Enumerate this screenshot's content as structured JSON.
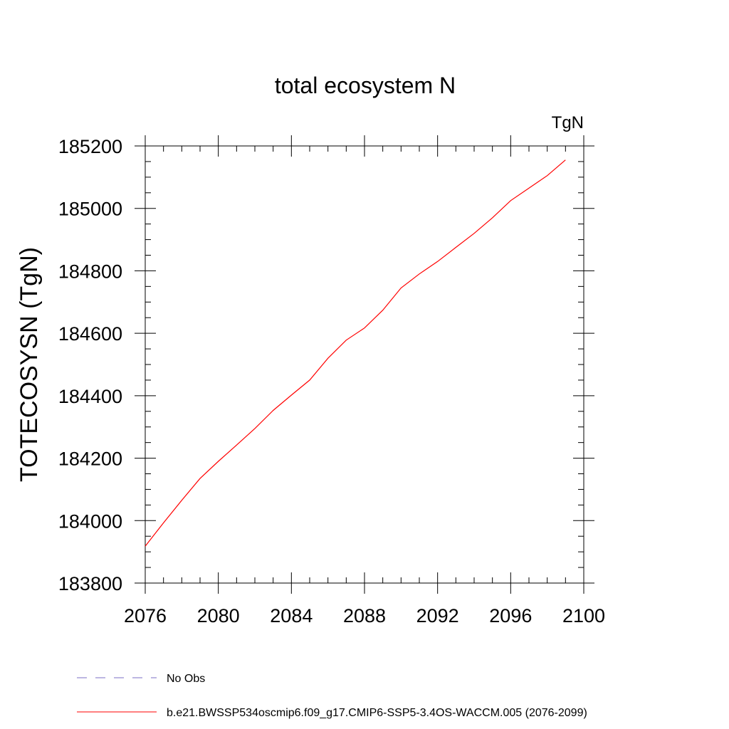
{
  "chart_data": {
    "type": "line",
    "title": "total ecosystem N",
    "units_label": "TgN",
    "ylabel": "TOTECOSYSN  (TgN)",
    "xlabel": "",
    "xlim": [
      2076,
      2100
    ],
    "ylim": [
      183800,
      185200
    ],
    "x_ticks": [
      2076,
      2080,
      2084,
      2088,
      2092,
      2096,
      2100
    ],
    "y_ticks": [
      183800,
      184000,
      184200,
      184400,
      184600,
      184800,
      185000,
      185200
    ],
    "x_minor_step": 1,
    "y_minor_step": 50,
    "grid": false,
    "legend_position": "bottom-left",
    "series": [
      {
        "name": "b.e21.BWSSP534oscmip6.f09_g17.CMIP6-SSP5-3.4OS-WACCM.005 (2076-2099)",
        "color": "#ff0000",
        "dash": "solid",
        "x": [
          2076,
          2077,
          2078,
          2079,
          2080,
          2081,
          2082,
          2083,
          2084,
          2085,
          2086,
          2087,
          2088,
          2089,
          2090,
          2091,
          2092,
          2093,
          2094,
          2095,
          2096,
          2097,
          2098,
          2099
        ],
        "y": [
          183918,
          183993,
          184065,
          184135,
          184190,
          184242,
          184295,
          184353,
          184402,
          184450,
          184520,
          184578,
          184617,
          184674,
          184745,
          184790,
          184830,
          184875,
          184920,
          184970,
          185025,
          185065,
          185105,
          185155
        ]
      }
    ],
    "legend": [
      {
        "label": "No Obs",
        "color": "#7b6fc4",
        "dash": "dashed"
      },
      {
        "label": "b.e21.BWSSP534oscmip6.f09_g17.CMIP6-SSP5-3.4OS-WACCM.005 (2076-2099)",
        "color": "#ff0000",
        "dash": "solid"
      }
    ]
  }
}
